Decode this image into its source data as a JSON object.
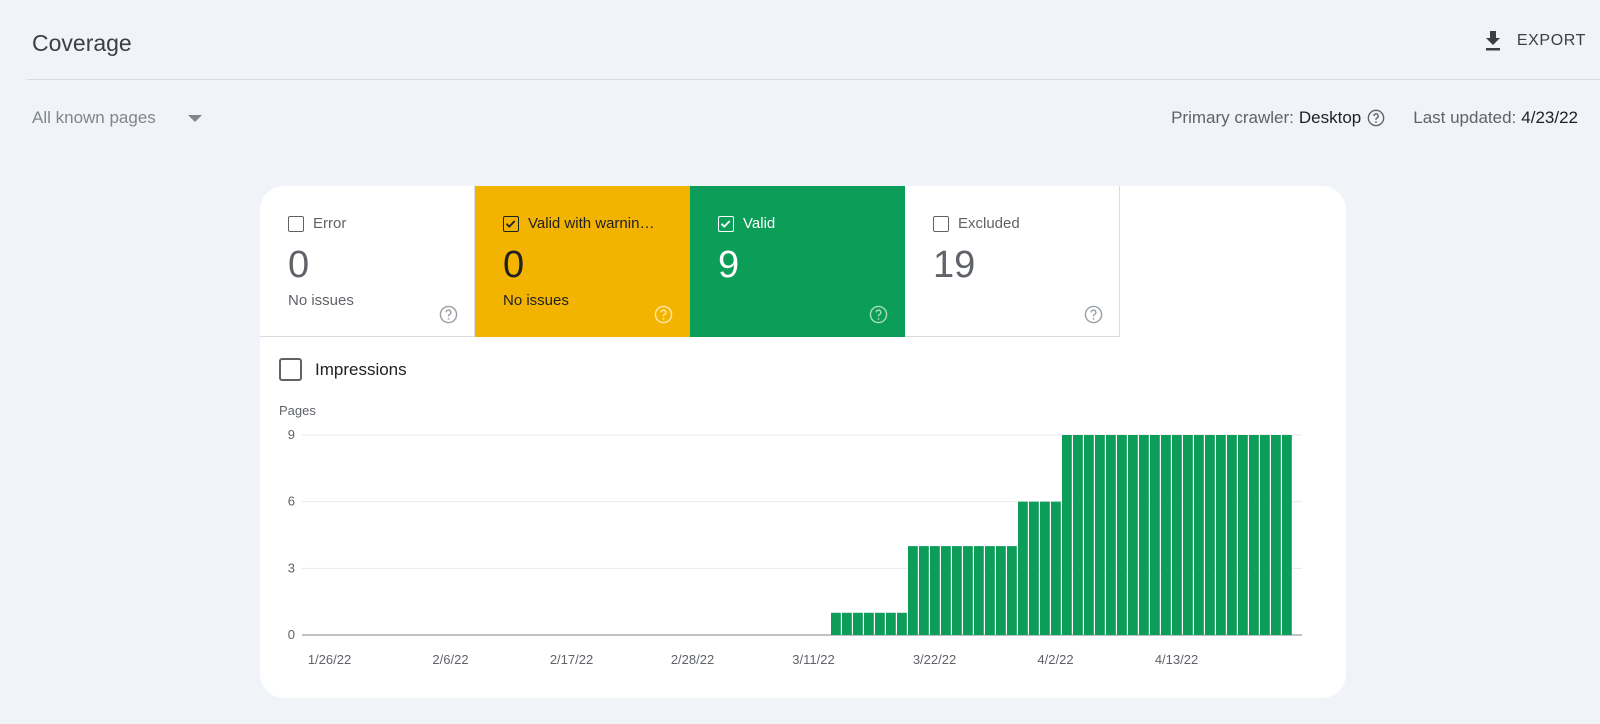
{
  "header": {
    "title": "Coverage",
    "export_label": "EXPORT"
  },
  "filter": {
    "selected": "All known pages"
  },
  "meta": {
    "crawler_label": "Primary crawler:",
    "crawler_value": "Desktop",
    "updated_label": "Last updated:",
    "updated_value": "4/23/22"
  },
  "tiles": [
    {
      "label": "Error",
      "count": "0",
      "subtitle": "No issues",
      "checked": false
    },
    {
      "label": "Valid with warnin…",
      "count": "0",
      "subtitle": "No issues",
      "checked": true
    },
    {
      "label": "Valid",
      "count": "9",
      "subtitle": "",
      "checked": true
    },
    {
      "label": "Excluded",
      "count": "19",
      "subtitle": "",
      "checked": false
    }
  ],
  "impressions_label": "Impressions",
  "colors": {
    "warning": "#f2b400",
    "valid": "#0c9d58",
    "background": "#f0f4f9"
  },
  "chart_data": {
    "type": "bar",
    "ylabel": "Pages",
    "ylim": [
      0,
      9
    ],
    "yticks": [
      0,
      3,
      6,
      9
    ],
    "xtick_labels": [
      "1/26/22",
      "2/6/22",
      "2/17/22",
      "2/28/22",
      "3/11/22",
      "3/22/22",
      "4/2/22",
      "4/13/22"
    ],
    "x_start": "1/26/22",
    "x_end": "4/23/22",
    "series": [
      {
        "color": "#0c9d58",
        "values": [
          0,
          0,
          0,
          0,
          0,
          0,
          0,
          0,
          0,
          0,
          0,
          0,
          0,
          0,
          0,
          0,
          0,
          0,
          0,
          0,
          0,
          0,
          0,
          0,
          0,
          0,
          0,
          0,
          0,
          0,
          0,
          0,
          0,
          0,
          0,
          0,
          0,
          0,
          0,
          0,
          0,
          0,
          0,
          0,
          0,
          0,
          0,
          0,
          1,
          1,
          1,
          1,
          1,
          1,
          1,
          4,
          4,
          4,
          4,
          4,
          4,
          4,
          4,
          4,
          4,
          6,
          6,
          6,
          6,
          9,
          9,
          9,
          9,
          9,
          9,
          9,
          9,
          9,
          9,
          9,
          9,
          9,
          9,
          9,
          9,
          9,
          9,
          9,
          9,
          9
        ]
      }
    ]
  }
}
